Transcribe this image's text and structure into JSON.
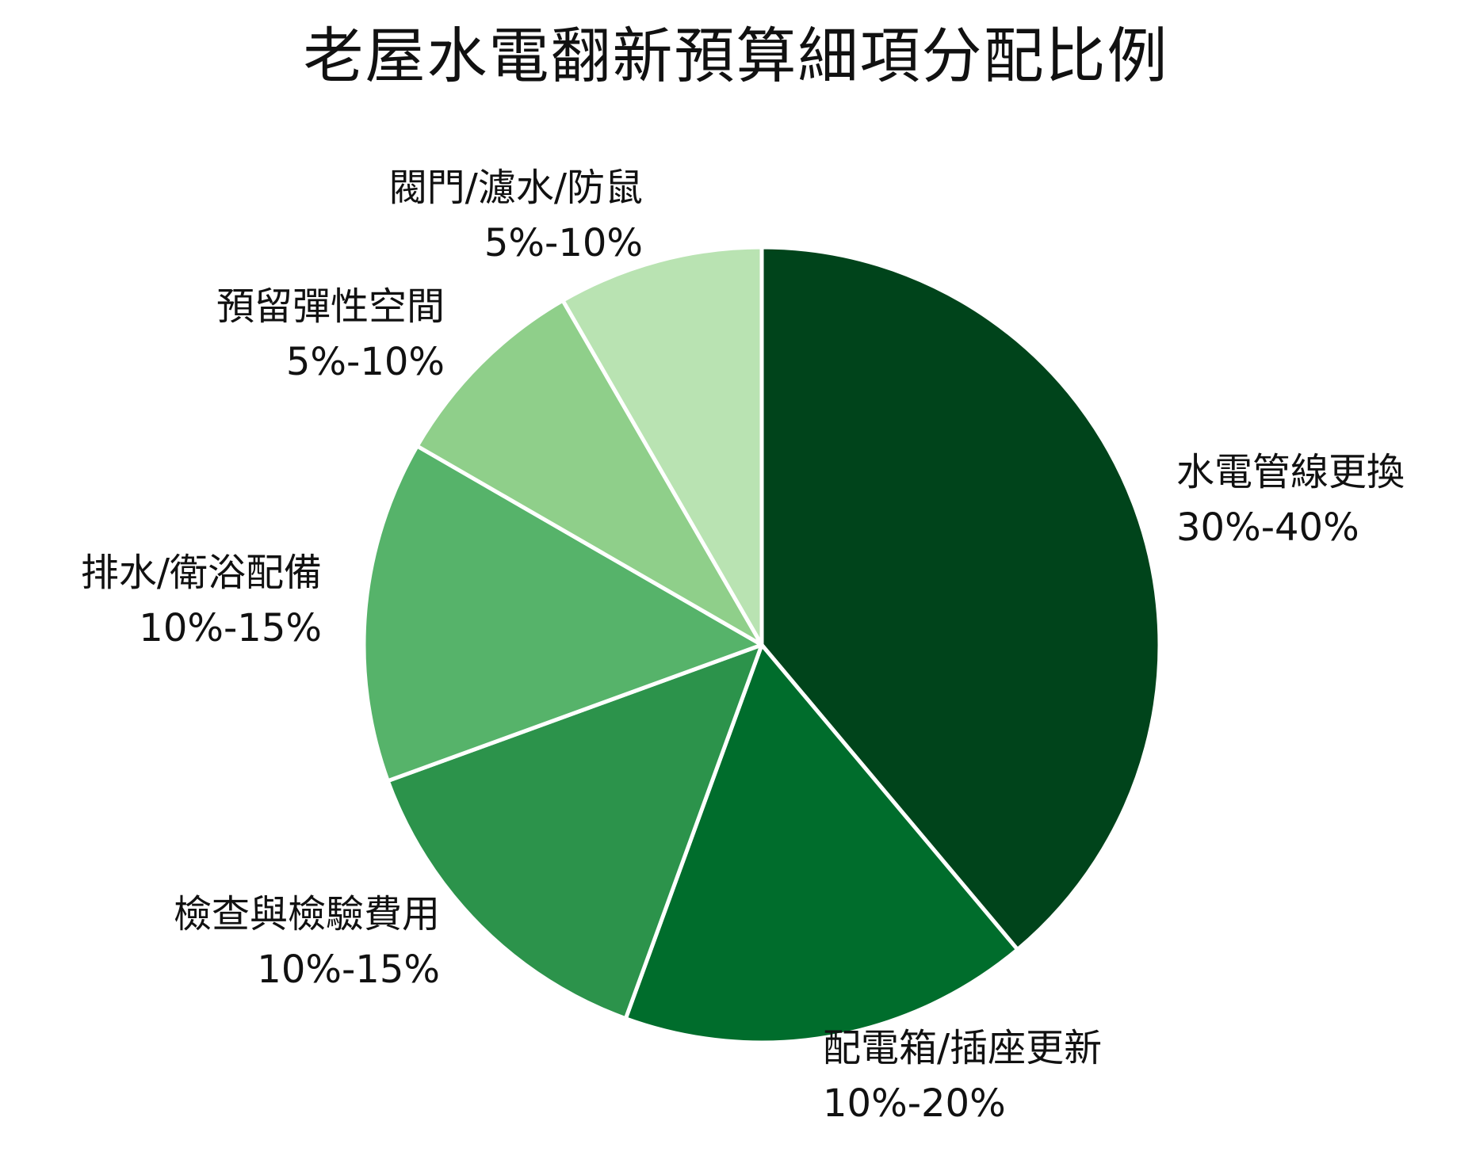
{
  "chart_data": {
    "type": "pie",
    "title": "老屋水電翻新預算細項分配比例",
    "slices": [
      {
        "name": "水電管線更換",
        "range": "30%-40%",
        "value": 35,
        "color": "#00441b"
      },
      {
        "name": "配電箱/插座更新",
        "range": "10%-20%",
        "value": 15,
        "color": "#006d2c"
      },
      {
        "name": "檢查與檢驗費用",
        "range": "10%-15%",
        "value": 12.5,
        "color": "#2c934b"
      },
      {
        "name": "排水/衛浴配備",
        "range": "10%-15%",
        "value": 12.5,
        "color": "#56b36a"
      },
      {
        "name": "預留彈性空間",
        "range": "5%-10%",
        "value": 7.5,
        "color": "#8fcf8a"
      },
      {
        "name": "閥門/濾水/防鼠",
        "range": "5%-10%",
        "value": 7.5,
        "color": "#b9e3b2"
      }
    ],
    "start": "12 o'clock",
    "direction": "clockwise",
    "legend": "none",
    "separator_color": "#ffffff"
  }
}
